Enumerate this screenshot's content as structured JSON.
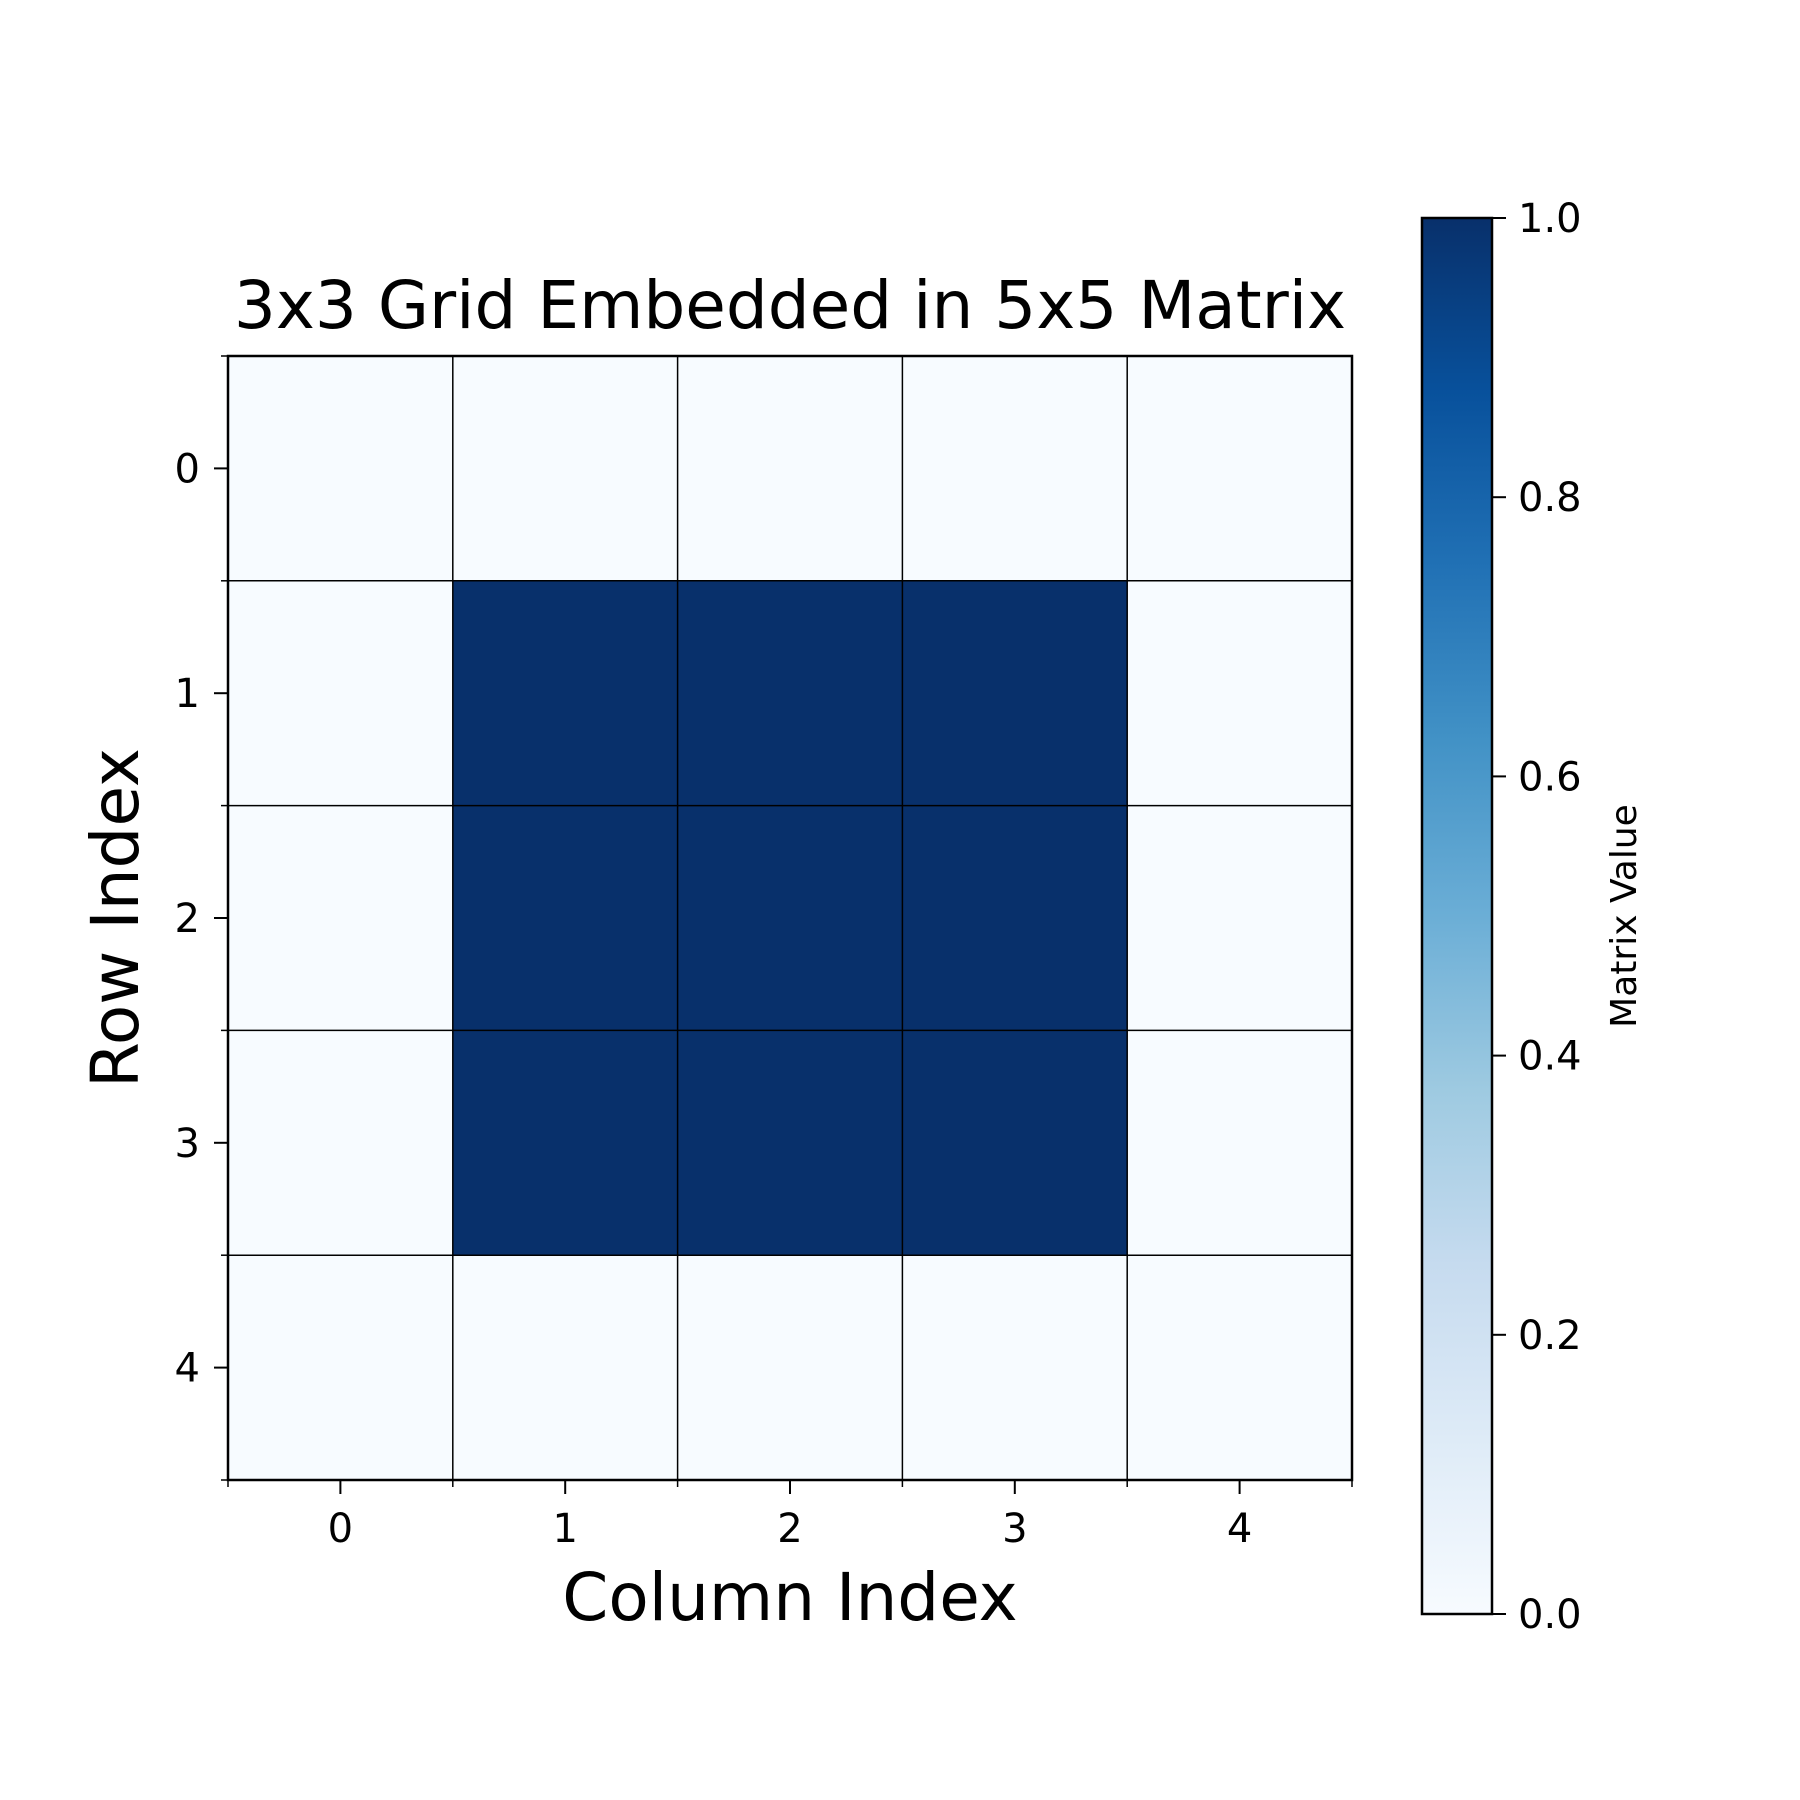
{
  "chart_data": {
    "type": "heatmap",
    "title": "3x3 Grid Embedded in 5x5 Matrix",
    "xlabel": "Column Index",
    "ylabel": "Row Index",
    "x_ticks": [
      "0",
      "1",
      "2",
      "3",
      "4"
    ],
    "y_ticks": [
      "0",
      "1",
      "2",
      "3",
      "4"
    ],
    "values": [
      [
        0,
        0,
        0,
        0,
        0
      ],
      [
        0,
        1,
        1,
        1,
        0
      ],
      [
        0,
        1,
        1,
        1,
        0
      ],
      [
        0,
        1,
        1,
        1,
        0
      ],
      [
        0,
        0,
        0,
        0,
        0
      ]
    ],
    "colormap": "Blues",
    "color_low": "#f7fbff",
    "color_high": "#08306b",
    "vmin": 0.0,
    "vmax": 1.0,
    "grid": true,
    "colorbar": {
      "label": "Matrix Value",
      "position": "right",
      "ticks": [
        "0.0",
        "0.2",
        "0.4",
        "0.6",
        "0.8",
        "1.0"
      ]
    }
  }
}
